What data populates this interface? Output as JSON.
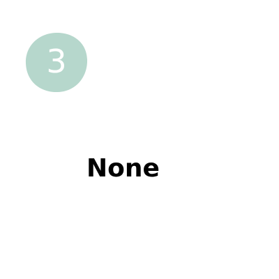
{
  "step": {
    "number": "3",
    "title": "None"
  },
  "colors": {
    "badge": "#b6d7cc",
    "number": "#ffffff",
    "title": "#000000"
  }
}
